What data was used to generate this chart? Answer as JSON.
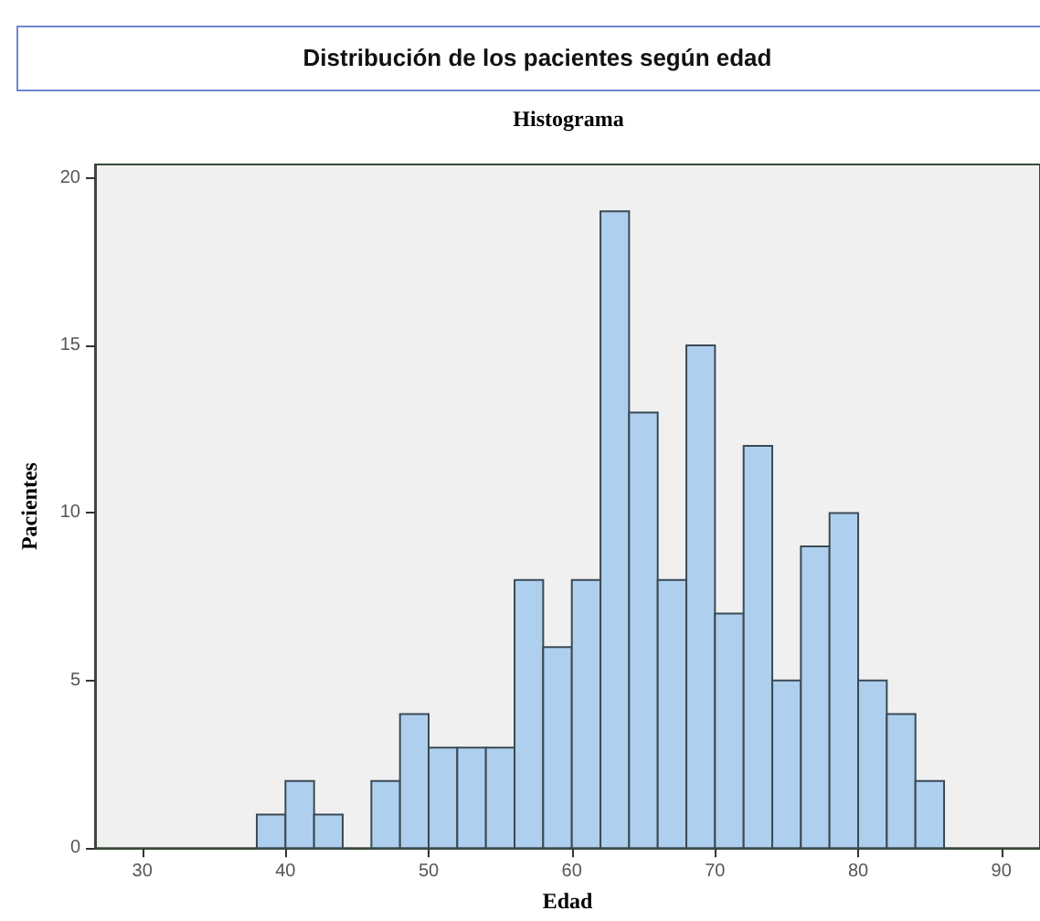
{
  "chart_data": {
    "type": "histogram",
    "title": "Distribución de los pacientes según edad",
    "subtitle": "Histograma",
    "xlabel": "Edad",
    "ylabel": "Pacientes",
    "bins": [
      38,
      40,
      42,
      44,
      46,
      48,
      50,
      52,
      54,
      56,
      58,
      60,
      62,
      64,
      66,
      68,
      70,
      72,
      74,
      76,
      78,
      80,
      82,
      84,
      86
    ],
    "values": [
      1,
      2,
      1,
      0,
      2,
      4,
      3,
      3,
      3,
      8,
      6,
      8,
      19,
      13,
      8,
      15,
      7,
      12,
      5,
      9,
      10,
      5,
      4,
      2
    ],
    "color": "#aed0ee",
    "xlim": [
      26.7,
      92.7
    ],
    "xticks": [
      30,
      40,
      50,
      60,
      70,
      80,
      90
    ],
    "ylim": [
      0,
      20.4
    ],
    "yticks": [
      0,
      5,
      10,
      15,
      20
    ],
    "grid": false
  }
}
